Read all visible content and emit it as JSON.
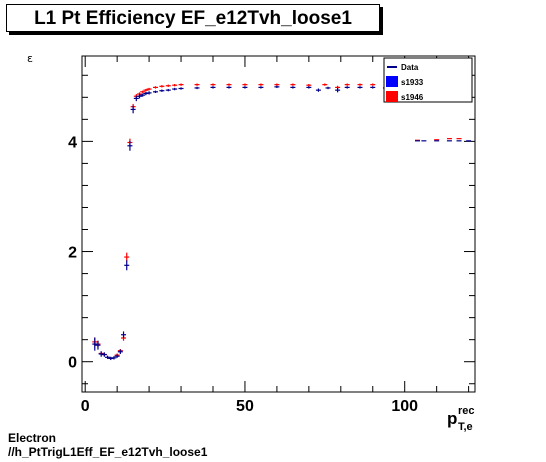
{
  "header": {
    "title": "L1 Pt Efficiency EF_e12Tvh_loose1"
  },
  "footer": {
    "line1": "Electron",
    "line2": "//h_PtTrigL1Eff_EF_e12Tvh_loose1"
  },
  "chart_data": {
    "type": "scatter",
    "title": "L1 Pt Efficiency EF_e12Tvh_loose1",
    "ylabel": "ε",
    "xlabel_main": "p",
    "xlabel_sup": "rec",
    "xlabel_sub": "T,e",
    "xlim": [
      -1,
      122
    ],
    "ylim": [
      -0.55,
      5.55
    ],
    "x_ticks": [
      0,
      50,
      100
    ],
    "y_ticks": [
      0,
      2,
      4
    ],
    "grid": false,
    "legend_position": "top-right",
    "series": [
      {
        "name": "Data",
        "color": "#00008b",
        "marker": "line",
        "points": [
          [
            3,
            0.32,
            0.12
          ],
          [
            4,
            0.3,
            0.08
          ],
          [
            5,
            0.14,
            0.05
          ],
          [
            6,
            0.13,
            0.04
          ],
          [
            7,
            0.08,
            0.03
          ],
          [
            8,
            0.06,
            0.03
          ],
          [
            9,
            0.07,
            0.03
          ],
          [
            10,
            0.1,
            0.03
          ],
          [
            11,
            0.18,
            0.04
          ],
          [
            12,
            0.49,
            0.06
          ],
          [
            13,
            1.75,
            0.09
          ],
          [
            14,
            3.92,
            0.09
          ],
          [
            15,
            4.58,
            0.07
          ],
          [
            16,
            4.78,
            0.05
          ],
          [
            17,
            4.82,
            0.04
          ],
          [
            18,
            4.84,
            0.03
          ],
          [
            19,
            4.87,
            0.03
          ],
          [
            20,
            4.88,
            0.03
          ],
          [
            22,
            4.9,
            0.02
          ],
          [
            24,
            4.92,
            0.02
          ],
          [
            26,
            4.93,
            0.02
          ],
          [
            28,
            4.95,
            0.02
          ],
          [
            30,
            4.96,
            0.02
          ],
          [
            35,
            4.97,
            0.01
          ],
          [
            40,
            4.98,
            0.01
          ],
          [
            45,
            4.98,
            0.01
          ],
          [
            50,
            4.98,
            0.01
          ],
          [
            55,
            4.98,
            0.01
          ],
          [
            60,
            4.99,
            0.01
          ],
          [
            65,
            4.98,
            0.01
          ],
          [
            70,
            4.98,
            0.01
          ],
          [
            73,
            4.93,
            0.03
          ],
          [
            76,
            4.97,
            0.01
          ],
          [
            79,
            4.93,
            0.04
          ],
          [
            82,
            4.98,
            0.01
          ],
          [
            86,
            4.98,
            0.01
          ],
          [
            90,
            4.98,
            0.01
          ],
          [
            94,
            4.97,
            0.01
          ],
          [
            97,
            4.92,
            0.05
          ],
          [
            100,
            4.97,
            0.01
          ],
          [
            104,
            4.01,
            0
          ],
          [
            106,
            4.01,
            0
          ],
          [
            110,
            4.01,
            0
          ],
          [
            114,
            4.01,
            0
          ],
          [
            117,
            4.01,
            0
          ],
          [
            120,
            4.01,
            0
          ]
        ]
      },
      {
        "name": "s1933",
        "color": "#0000ff",
        "marker": "filled-square",
        "points": []
      },
      {
        "name": "s1946",
        "color": "#ff0000",
        "marker": "filled-square",
        "points": [
          [
            3,
            0.36,
            0.08
          ],
          [
            4,
            0.32,
            0.06
          ],
          [
            5,
            0.15,
            0.03
          ],
          [
            6,
            0.13,
            0.03
          ],
          [
            8,
            0.06,
            0.02
          ],
          [
            10,
            0.12,
            0.03
          ],
          [
            11,
            0.2,
            0.03
          ],
          [
            12,
            0.43,
            0.05
          ],
          [
            13,
            1.9,
            0.08
          ],
          [
            14,
            3.98,
            0.07
          ],
          [
            15,
            4.63,
            0.05
          ],
          [
            16,
            4.82,
            0.04
          ],
          [
            17,
            4.86,
            0.03
          ],
          [
            18,
            4.9,
            0.02
          ],
          [
            19,
            4.93,
            0.02
          ],
          [
            20,
            4.95,
            0.02
          ],
          [
            22,
            4.98,
            0.02
          ],
          [
            24,
            5.0,
            0.01
          ],
          [
            26,
            5.01,
            0.01
          ],
          [
            28,
            5.02,
            0.01
          ],
          [
            30,
            5.03,
            0.01
          ],
          [
            35,
            5.03,
            0.01
          ],
          [
            40,
            5.03,
            0.01
          ],
          [
            45,
            5.03,
            0.01
          ],
          [
            50,
            5.03,
            0.01
          ],
          [
            55,
            5.03,
            0.01
          ],
          [
            60,
            5.03,
            0.01
          ],
          [
            65,
            5.03,
            0.01
          ],
          [
            70,
            5.02,
            0.01
          ],
          [
            75,
            5.03,
            0.01
          ],
          [
            79,
            4.98,
            0.03
          ],
          [
            82,
            5.03,
            0.01
          ],
          [
            86,
            5.03,
            0.01
          ],
          [
            90,
            5.03,
            0.01
          ],
          [
            95,
            5.03,
            0.01
          ],
          [
            100,
            5.02,
            0.01
          ],
          [
            104,
            5.03,
            0.01
          ],
          [
            108,
            5.03,
            0.01
          ],
          [
            112,
            5.04,
            0.01
          ],
          [
            116,
            5.04,
            0.01
          ],
          [
            120,
            5.04,
            0.01
          ],
          [
            104,
            4.02,
            0
          ],
          [
            110,
            4.03,
            0
          ],
          [
            114,
            4.05,
            0
          ],
          [
            117,
            4.05,
            0
          ]
        ]
      }
    ]
  }
}
